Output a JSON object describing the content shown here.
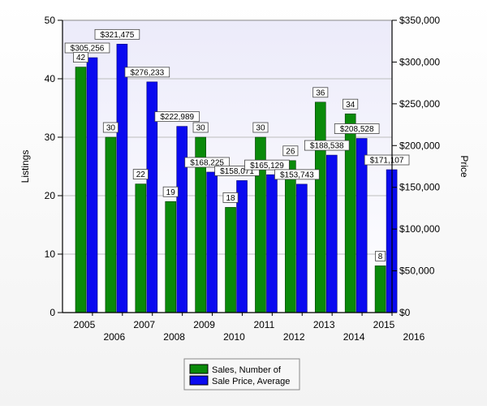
{
  "chart_data": {
    "type": "bar",
    "title": "",
    "categories": [
      "2005",
      "2006",
      "2007",
      "2008",
      "2009",
      "2010",
      "2011",
      "2012",
      "2013",
      "2014",
      "2015"
    ],
    "x_tick_labels": [
      "2005",
      "2006",
      "2007",
      "2008",
      "2009",
      "2010",
      "2011",
      "2012",
      "2013",
      "2014",
      "2015",
      "2016"
    ],
    "y_left": {
      "label": "Listings",
      "min": 0,
      "max": 50,
      "ticks": [
        0,
        10,
        20,
        30,
        40,
        50
      ]
    },
    "y_right": {
      "label": "Price",
      "min": 0,
      "max": 350000,
      "tick_labels": [
        "$0",
        "$50,000",
        "$100,000",
        "$150,000",
        "$200,000",
        "$250,000",
        "$300,000",
        "$350,000"
      ]
    },
    "series": [
      {
        "name": "Sales, Number of",
        "axis": "left",
        "color": "#0a8a0a",
        "values": [
          42,
          30,
          22,
          19,
          30,
          18,
          30,
          26,
          36,
          34,
          8
        ],
        "labels": [
          "42",
          "30",
          "22",
          "19",
          "30",
          "18",
          "30",
          "26",
          "36",
          "34",
          "8"
        ]
      },
      {
        "name": "Sale Price, Average",
        "axis": "right",
        "color": "#0a0af0",
        "values": [
          305256,
          321475,
          276233,
          222989,
          168225,
          158071,
          165129,
          153743,
          188538,
          208528,
          171107
        ],
        "labels": [
          "$305,256",
          "$321,475",
          "$276,233",
          "$222,989",
          "$168,225",
          "$158,071",
          "$165,129",
          "$153,743",
          "$188,538",
          "$208,528",
          "$171,107"
        ]
      }
    ],
    "grid": true,
    "legend_position": "bottom"
  }
}
